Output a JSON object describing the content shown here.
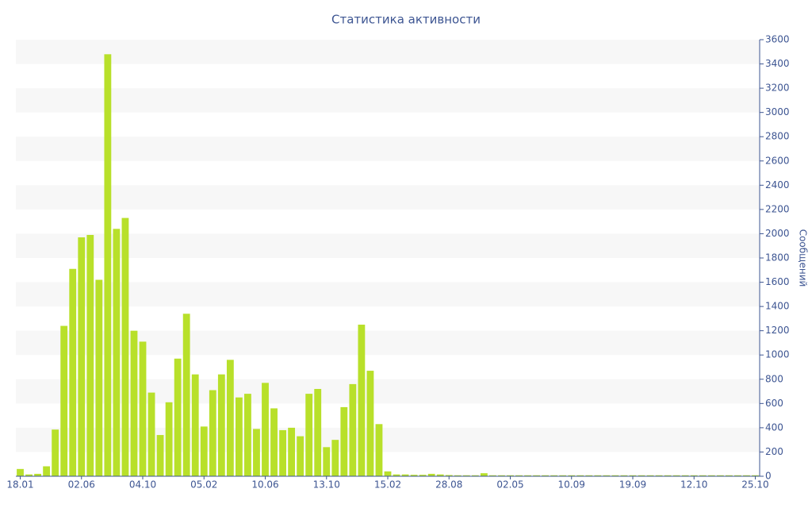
{
  "chart_data": {
    "type": "bar",
    "title": "Статистика активности",
    "y_label": "Сообщений",
    "categories": [
      "18.01",
      null,
      null,
      null,
      null,
      null,
      null,
      "02.06",
      null,
      null,
      null,
      null,
      null,
      null,
      "04.10",
      null,
      null,
      null,
      null,
      null,
      null,
      "05.02",
      null,
      null,
      null,
      null,
      null,
      null,
      "10.06",
      null,
      null,
      null,
      null,
      null,
      null,
      "13.10",
      null,
      null,
      null,
      null,
      null,
      null,
      "15.02",
      null,
      null,
      null,
      null,
      null,
      null,
      "28.08",
      null,
      null,
      null,
      null,
      null,
      null,
      "02.05",
      null,
      null,
      null,
      null,
      null,
      null,
      "10.09",
      null,
      null,
      null,
      null,
      null,
      null,
      "19.09",
      null,
      null,
      null,
      null,
      null,
      null,
      "12.10",
      null,
      null,
      null,
      null,
      null,
      null,
      "25.10"
    ],
    "values": [
      60,
      15,
      20,
      82,
      385,
      1240,
      1710,
      1970,
      1990,
      1620,
      3480,
      2040,
      2130,
      1200,
      1110,
      690,
      340,
      610,
      970,
      1340,
      840,
      410,
      710,
      840,
      960,
      650,
      680,
      390,
      770,
      560,
      380,
      400,
      330,
      680,
      720,
      240,
      300,
      570,
      760,
      1250,
      870,
      430,
      40,
      15,
      15,
      12,
      12,
      20,
      15,
      10,
      8,
      8,
      8,
      25,
      8,
      8,
      8,
      8,
      8,
      8,
      8,
      8,
      8,
      8,
      8,
      8,
      8,
      8,
      8,
      8,
      8,
      8,
      8,
      8,
      8,
      8,
      8,
      8,
      8,
      8,
      8,
      8,
      8,
      8,
      8
    ],
    "color": "#b8e02a",
    "ylim": [
      0,
      3600
    ],
    "yticks": [
      0,
      200,
      400,
      600,
      800,
      1000,
      1200,
      1400,
      1600,
      1800,
      2000,
      2200,
      2400,
      2600,
      2800,
      3000,
      3200,
      3400,
      3600
    ],
    "grid": true,
    "y_axis_side": "right"
  }
}
